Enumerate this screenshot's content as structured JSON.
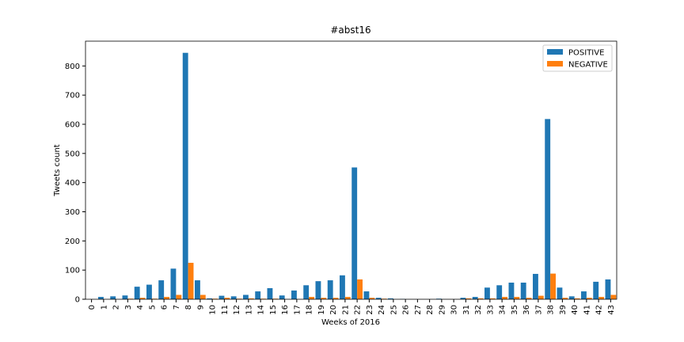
{
  "chart_data": {
    "type": "bar",
    "title": "#abst16",
    "xlabel": "Weeks of 2016",
    "ylabel": "Tweets count",
    "categories": [
      "0",
      "1",
      "2",
      "3",
      "4",
      "5",
      "6",
      "7",
      "8",
      "9",
      "10",
      "11",
      "12",
      "13",
      "14",
      "15",
      "16",
      "17",
      "18",
      "19",
      "20",
      "21",
      "22",
      "23",
      "24",
      "25",
      "26",
      "27",
      "28",
      "29",
      "30",
      "31",
      "32",
      "33",
      "34",
      "35",
      "36",
      "37",
      "38",
      "39",
      "40",
      "41",
      "42",
      "43"
    ],
    "series": [
      {
        "name": "POSITIVE",
        "color": "#1f77b4",
        "values": [
          0,
          8,
          10,
          13,
          43,
          50,
          65,
          105,
          845,
          65,
          3,
          12,
          10,
          15,
          27,
          38,
          13,
          30,
          48,
          62,
          65,
          82,
          452,
          27,
          5,
          3,
          1,
          0,
          0,
          2,
          0,
          5,
          8,
          40,
          48,
          57,
          57,
          87,
          618,
          40,
          10,
          27,
          60,
          68
        ]
      },
      {
        "name": "NEGATIVE",
        "color": "#ff7f0e",
        "values": [
          0,
          0,
          0,
          2,
          5,
          2,
          8,
          15,
          125,
          15,
          2,
          5,
          2,
          3,
          2,
          2,
          0,
          0,
          8,
          5,
          5,
          8,
          68,
          5,
          2,
          0,
          0,
          0,
          0,
          0,
          0,
          3,
          3,
          3,
          8,
          8,
          5,
          12,
          88,
          5,
          3,
          5,
          8,
          15
        ]
      }
    ],
    "ylim": [
      0,
      885
    ],
    "yticks": [
      0,
      100,
      200,
      300,
      400,
      500,
      600,
      700,
      800
    ],
    "legend": "upper right"
  }
}
